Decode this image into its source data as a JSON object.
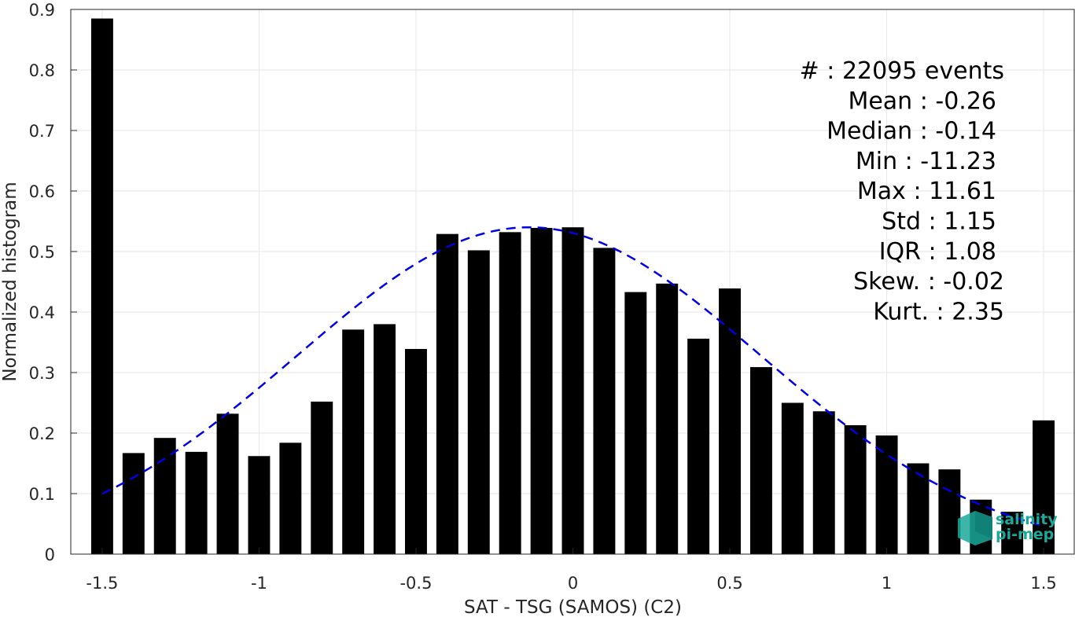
{
  "chart_data": {
    "type": "bar",
    "xlabel": "SAT - TSG (SAMOS) (C2)",
    "ylabel": "Normalized histogram",
    "xlim": [
      -1.6,
      1.6
    ],
    "ylim": [
      0,
      0.9
    ],
    "grid": true,
    "x_ticks": [
      -1.5,
      -1,
      -0.5,
      0,
      0.5,
      1,
      1.5
    ],
    "x_tick_labels": [
      "-1.5",
      "-1",
      "-0.5",
      "0",
      "0.5",
      "1",
      "1.5"
    ],
    "y_ticks": [
      0,
      0.1,
      0.2,
      0.3,
      0.4,
      0.5,
      0.6,
      0.7,
      0.8,
      0.9
    ],
    "y_tick_labels": [
      "0",
      "0.1",
      "0.2",
      "0.3",
      "0.4",
      "0.5",
      "0.6",
      "0.7",
      "0.8",
      "0.9"
    ],
    "bar_width": 0.07,
    "x": [
      -1.5,
      -1.4,
      -1.3,
      -1.2,
      -1.1,
      -1.0,
      -0.9,
      -0.8,
      -0.7,
      -0.6,
      -0.5,
      -0.4,
      -0.3,
      -0.2,
      -0.1,
      0.0,
      0.1,
      0.2,
      0.3,
      0.4,
      0.5,
      0.6,
      0.7,
      0.8,
      0.9,
      1.0,
      1.1,
      1.2,
      1.3,
      1.4,
      1.5
    ],
    "values": [
      0.885,
      0.167,
      0.192,
      0.169,
      0.232,
      0.162,
      0.184,
      0.252,
      0.371,
      0.38,
      0.339,
      0.529,
      0.502,
      0.532,
      0.539,
      0.54,
      0.506,
      0.433,
      0.447,
      0.356,
      0.439,
      0.309,
      0.25,
      0.236,
      0.213,
      0.196,
      0.15,
      0.14,
      0.09,
      0.07,
      0.221
    ],
    "fit_curve": {
      "style": "dashed",
      "color": "#0000e6",
      "mean": -0.14,
      "std": 0.74,
      "peak": 0.54
    },
    "bar_color": "#000000",
    "stats": [
      {
        "label": "#  ",
        "value": "22095 events"
      },
      {
        "label": "Mean",
        "value": "-0.26"
      },
      {
        "label": "Median",
        "value": "-0.14"
      },
      {
        "label": "Min",
        "value": "-11.23"
      },
      {
        "label": "Max",
        "value": "11.61"
      },
      {
        "label": "Std",
        "value": "1.15"
      },
      {
        "label": "IQR",
        "value": "1.08"
      },
      {
        "label": "Skew.",
        "value": "-0.02"
      },
      {
        "label": "Kurt.",
        "value": "2.35"
      }
    ],
    "stats_placement": "top-right"
  },
  "logo": {
    "line1": "salinity",
    "line2": "pi-mep",
    "color": "#1aa99a"
  }
}
